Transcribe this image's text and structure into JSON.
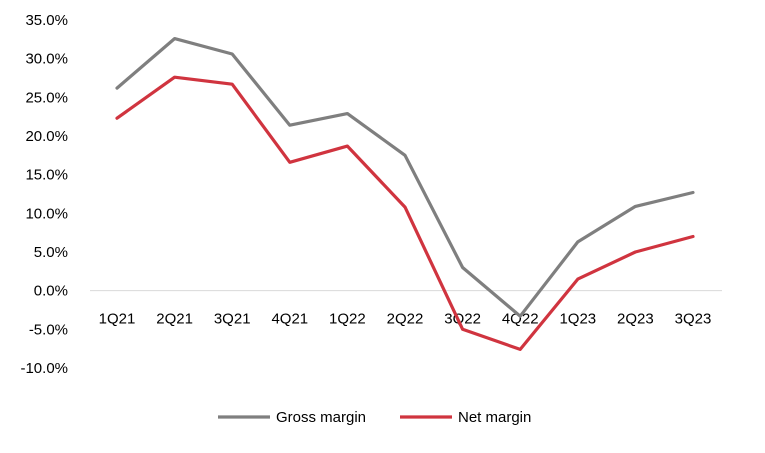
{
  "chart_data": {
    "type": "line",
    "categories": [
      "1Q21",
      "2Q21",
      "3Q21",
      "4Q21",
      "1Q22",
      "2Q22",
      "3Q22",
      "4Q22",
      "1Q23",
      "2Q23",
      "3Q23"
    ],
    "series": [
      {
        "name": "Gross margin",
        "color": "#7f7f7f",
        "values": [
          26.2,
          32.6,
          30.6,
          21.4,
          22.9,
          17.5,
          3.0,
          -3.3,
          6.3,
          10.9,
          12.7
        ]
      },
      {
        "name": "Net margin",
        "color": "#d0343f",
        "values": [
          22.3,
          27.6,
          26.7,
          16.6,
          18.7,
          10.8,
          -5.0,
          -7.6,
          1.5,
          5.0,
          7.0
        ]
      }
    ],
    "y_ticks": [
      "35.0%",
      "30.0%",
      "25.0%",
      "20.0%",
      "15.0%",
      "10.0%",
      "5.0%",
      "0.0%",
      "-5.0%",
      "-10.0%"
    ],
    "ylim": [
      -10,
      35
    ],
    "grid": false,
    "legend_position": "bottom"
  }
}
